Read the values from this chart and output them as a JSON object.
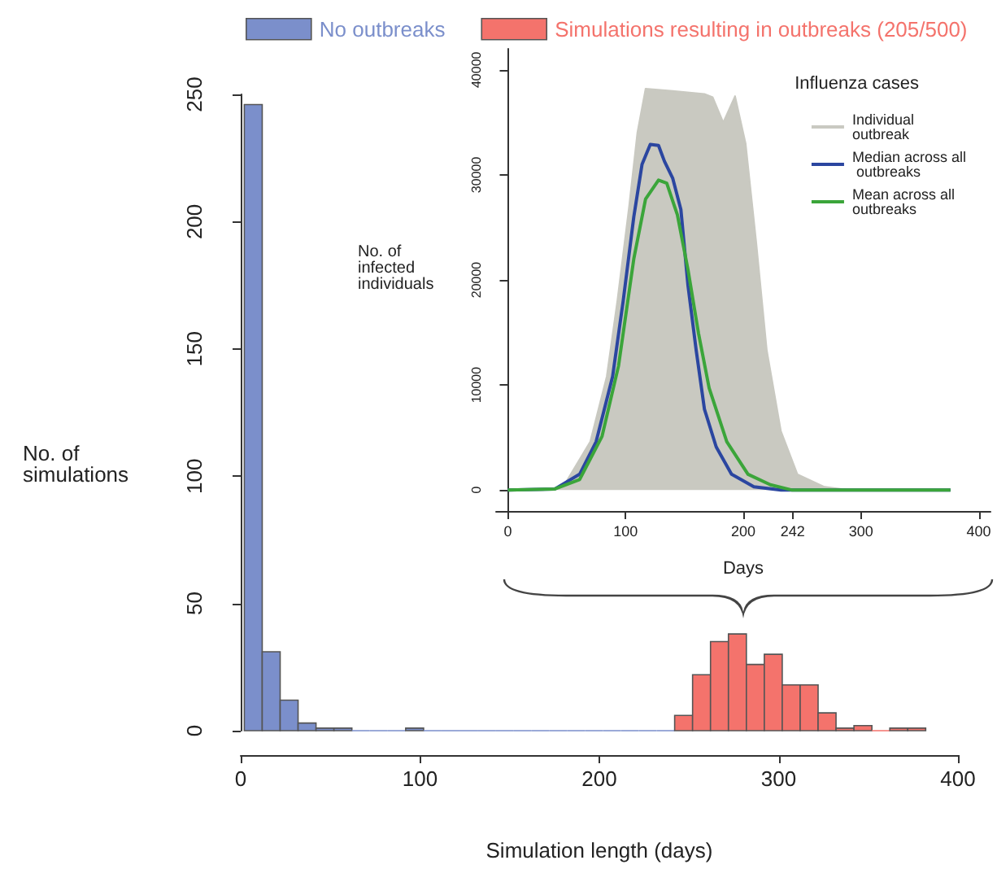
{
  "chart_data": [
    {
      "type": "histogram",
      "xlabel": "Simulation length (days)",
      "ylabel": "No. of simulations",
      "bins": [
        2,
        12,
        22,
        32,
        42,
        52,
        62,
        72,
        82,
        92,
        102,
        112,
        122,
        132,
        142,
        152,
        162,
        172,
        182,
        192,
        202,
        212,
        222,
        232,
        242,
        252,
        262,
        272,
        282,
        292,
        302,
        312,
        322,
        332,
        342,
        352,
        362,
        372,
        382
      ],
      "series": [
        {
          "name": "No outbreaks",
          "color": "#7b8fcb",
          "values": [
            246,
            31,
            12,
            3,
            1,
            1,
            0,
            0,
            0,
            1,
            0,
            0,
            0,
            0,
            0,
            0,
            0,
            0,
            0,
            0,
            0,
            0,
            0,
            0,
            null,
            null,
            null,
            null,
            null,
            null,
            null,
            null,
            null,
            null,
            null,
            null,
            null,
            null
          ]
        },
        {
          "name": "Simulations resulting in outbreaks (205/500)",
          "color": "#f4736c",
          "values": [
            null,
            null,
            null,
            null,
            null,
            null,
            null,
            null,
            null,
            null,
            null,
            null,
            null,
            null,
            null,
            null,
            null,
            null,
            null,
            null,
            null,
            null,
            null,
            null,
            6,
            22,
            35,
            38,
            26,
            30,
            18,
            18,
            7,
            1,
            2,
            0,
            1,
            1
          ]
        }
      ],
      "xlim": [
        0,
        400
      ],
      "xticks": [
        0,
        100,
        200,
        300,
        400
      ],
      "ylim": [
        0,
        250
      ],
      "yticks": [
        0,
        50,
        100,
        150,
        200,
        250
      ],
      "grid": false,
      "legend": "top"
    },
    {
      "type": "line",
      "xlabel": "Days",
      "ylabel": "No. of infected individuals",
      "legend_title": "Influenza cases",
      "series": [
        {
          "name": "Individual outbreak",
          "type": "area",
          "color": "#c9c9c1",
          "x": [
            0,
            30,
            47,
            70,
            84,
            93,
            103,
            110,
            117,
            140,
            167,
            174,
            183,
            193,
            202,
            211,
            220,
            232,
            246,
            269,
            290,
            376
          ],
          "values": [
            0,
            0,
            300,
            4600,
            10800,
            18000,
            27000,
            34000,
            38200,
            38000,
            37700,
            37400,
            35000,
            37500,
            33000,
            23600,
            13300,
            5600,
            1500,
            300,
            0,
            0
          ]
        },
        {
          "name": "Median across all outbreaks",
          "color": "#2b46a0",
          "x": [
            0,
            40,
            61,
            75,
            89,
            98,
            107,
            114,
            121,
            128,
            133,
            140,
            147,
            153,
            160,
            167,
            177,
            190,
            209,
            232,
            376
          ],
          "values": [
            0,
            100,
            1500,
            4600,
            10800,
            18000,
            26000,
            31000,
            32900,
            32800,
            31300,
            29700,
            26700,
            19500,
            13300,
            7700,
            4100,
            1500,
            300,
            0,
            0
          ]
        },
        {
          "name": "Mean across all outbreaks",
          "color": "#3ba53a",
          "x": [
            0,
            40,
            61,
            80,
            94,
            107,
            117,
            128,
            135,
            144,
            153,
            162,
            171,
            186,
            204,
            223,
            241,
            376
          ],
          "values": [
            0,
            100,
            1000,
            5100,
            11800,
            22000,
            27700,
            29500,
            29200,
            26200,
            21000,
            14900,
            9700,
            4600,
            1500,
            500,
            0,
            0
          ]
        }
      ],
      "xlim": [
        -10,
        410
      ],
      "xticks": [
        0,
        100,
        200,
        242,
        300,
        400
      ],
      "ylim": [
        -2000,
        42000
      ],
      "yticks": [
        0,
        10000,
        20000,
        30000,
        40000
      ],
      "grid": false,
      "legend": "top right",
      "marker": "none",
      "line_style": "solid"
    }
  ]
}
